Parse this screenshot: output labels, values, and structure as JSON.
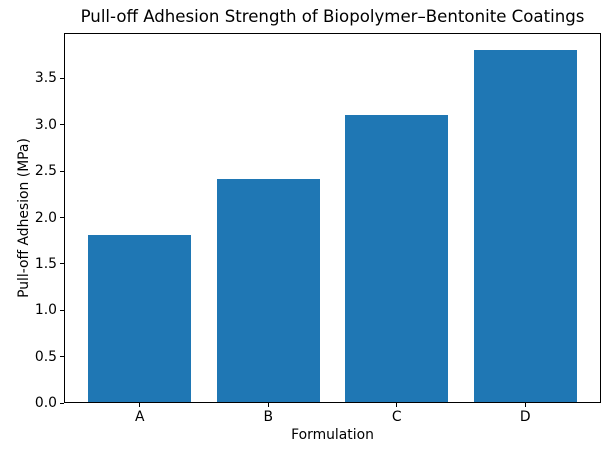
{
  "chart_data": {
    "type": "bar",
    "title": "Pull-off Adhesion Strength of Biopolymer–Bentonite Coatings",
    "xlabel": "Formulation",
    "ylabel": "Pull-off Adhesion (MPa)",
    "categories": [
      "A",
      "B",
      "C",
      "D"
    ],
    "values": [
      1.8,
      2.4,
      3.1,
      3.8
    ],
    "ylim": [
      0,
      3.99
    ],
    "yticks": [
      0.0,
      0.5,
      1.0,
      1.5,
      2.0,
      2.5,
      3.0,
      3.5
    ],
    "ytick_labels": [
      "0.0",
      "0.5",
      "1.0",
      "1.5",
      "2.0",
      "2.5",
      "3.0",
      "3.5"
    ],
    "bar_width_fraction": 0.8,
    "bar_color": "#1f77b4",
    "axis_color": "#000000",
    "background_color": "#ffffff",
    "grid": false,
    "legend": "none"
  }
}
